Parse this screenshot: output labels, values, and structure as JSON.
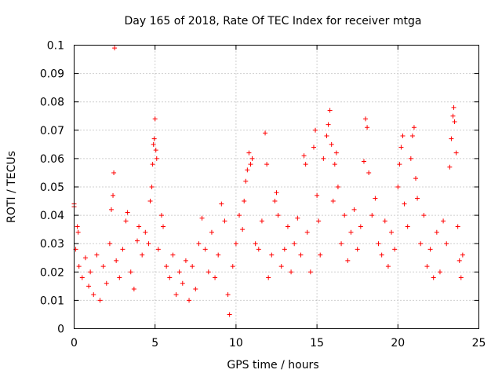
{
  "chart_data": {
    "type": "scatter",
    "title": "Day 165 of 2018, Rate Of TEC Index for receiver mtga",
    "xlabel": "GPS time / hours",
    "ylabel": "ROTI / TECUs",
    "xlim": [
      0,
      25
    ],
    "ylim": [
      0,
      0.1
    ],
    "xticks": [
      0,
      5,
      10,
      15,
      20,
      25
    ],
    "yticks": [
      0,
      0.01,
      0.02,
      0.03,
      0.04,
      0.05,
      0.06,
      0.07,
      0.08,
      0.09,
      0.1
    ],
    "xtick_labels": [
      "0",
      "5",
      "10",
      "15",
      "20",
      "25"
    ],
    "ytick_labels": [
      "0",
      "0.01",
      "0.02",
      "0.03",
      "0.04",
      "0.05",
      "0.06",
      "0.07",
      "0.08",
      "0.09",
      "0.1"
    ],
    "grid": true,
    "marker": "+",
    "color": "#ff0000",
    "series": [
      {
        "name": "ROTI",
        "points": [
          [
            0.0,
            0.044
          ],
          [
            0.0,
            0.043
          ],
          [
            0.1,
            0.028
          ],
          [
            0.2,
            0.036
          ],
          [
            0.25,
            0.034
          ],
          [
            0.3,
            0.022
          ],
          [
            0.5,
            0.018
          ],
          [
            0.7,
            0.025
          ],
          [
            0.9,
            0.015
          ],
          [
            1.0,
            0.02
          ],
          [
            1.2,
            0.012
          ],
          [
            1.4,
            0.026
          ],
          [
            1.6,
            0.01
          ],
          [
            1.8,
            0.022
          ],
          [
            2.0,
            0.016
          ],
          [
            2.2,
            0.03
          ],
          [
            2.3,
            0.042
          ],
          [
            2.4,
            0.047
          ],
          [
            2.45,
            0.055
          ],
          [
            2.5,
            0.099
          ],
          [
            2.6,
            0.024
          ],
          [
            2.8,
            0.018
          ],
          [
            3.0,
            0.028
          ],
          [
            3.2,
            0.038
          ],
          [
            3.3,
            0.041
          ],
          [
            3.5,
            0.02
          ],
          [
            3.7,
            0.014
          ],
          [
            3.9,
            0.031
          ],
          [
            4.0,
            0.036
          ],
          [
            4.2,
            0.026
          ],
          [
            4.4,
            0.034
          ],
          [
            4.6,
            0.03
          ],
          [
            4.7,
            0.045
          ],
          [
            4.8,
            0.05
          ],
          [
            4.85,
            0.058
          ],
          [
            4.9,
            0.065
          ],
          [
            4.95,
            0.067
          ],
          [
            5.0,
            0.074
          ],
          [
            5.05,
            0.063
          ],
          [
            5.1,
            0.06
          ],
          [
            5.2,
            0.028
          ],
          [
            5.4,
            0.04
          ],
          [
            5.5,
            0.036
          ],
          [
            5.7,
            0.022
          ],
          [
            5.9,
            0.018
          ],
          [
            6.1,
            0.026
          ],
          [
            6.3,
            0.012
          ],
          [
            6.5,
            0.02
          ],
          [
            6.7,
            0.016
          ],
          [
            6.9,
            0.024
          ],
          [
            7.1,
            0.01
          ],
          [
            7.3,
            0.022
          ],
          [
            7.5,
            0.014
          ],
          [
            7.7,
            0.03
          ],
          [
            7.9,
            0.039
          ],
          [
            8.1,
            0.028
          ],
          [
            8.3,
            0.02
          ],
          [
            8.5,
            0.034
          ],
          [
            8.7,
            0.018
          ],
          [
            8.9,
            0.026
          ],
          [
            9.1,
            0.044
          ],
          [
            9.3,
            0.038
          ],
          [
            9.5,
            0.012
          ],
          [
            9.6,
            0.005
          ],
          [
            9.8,
            0.022
          ],
          [
            10.0,
            0.03
          ],
          [
            10.2,
            0.04
          ],
          [
            10.4,
            0.035
          ],
          [
            10.5,
            0.045
          ],
          [
            10.6,
            0.052
          ],
          [
            10.7,
            0.056
          ],
          [
            10.8,
            0.062
          ],
          [
            10.9,
            0.058
          ],
          [
            11.0,
            0.06
          ],
          [
            11.2,
            0.03
          ],
          [
            11.4,
            0.028
          ],
          [
            11.6,
            0.038
          ],
          [
            11.8,
            0.069
          ],
          [
            11.9,
            0.058
          ],
          [
            12.0,
            0.018
          ],
          [
            12.2,
            0.026
          ],
          [
            12.4,
            0.045
          ],
          [
            12.5,
            0.048
          ],
          [
            12.6,
            0.04
          ],
          [
            12.8,
            0.022
          ],
          [
            13.0,
            0.028
          ],
          [
            13.2,
            0.036
          ],
          [
            13.4,
            0.02
          ],
          [
            13.6,
            0.03
          ],
          [
            13.8,
            0.039
          ],
          [
            14.0,
            0.026
          ],
          [
            14.2,
            0.061
          ],
          [
            14.3,
            0.058
          ],
          [
            14.4,
            0.034
          ],
          [
            14.6,
            0.02
          ],
          [
            14.8,
            0.064
          ],
          [
            14.9,
            0.07
          ],
          [
            15.0,
            0.047
          ],
          [
            15.1,
            0.038
          ],
          [
            15.2,
            0.026
          ],
          [
            15.4,
            0.06
          ],
          [
            15.6,
            0.068
          ],
          [
            15.7,
            0.072
          ],
          [
            15.8,
            0.077
          ],
          [
            15.9,
            0.065
          ],
          [
            16.0,
            0.045
          ],
          [
            16.1,
            0.058
          ],
          [
            16.2,
            0.062
          ],
          [
            16.3,
            0.05
          ],
          [
            16.5,
            0.03
          ],
          [
            16.7,
            0.04
          ],
          [
            16.9,
            0.024
          ],
          [
            17.1,
            0.034
          ],
          [
            17.3,
            0.042
          ],
          [
            17.5,
            0.028
          ],
          [
            17.7,
            0.036
          ],
          [
            17.9,
            0.059
          ],
          [
            18.0,
            0.074
          ],
          [
            18.1,
            0.071
          ],
          [
            18.2,
            0.055
          ],
          [
            18.4,
            0.04
          ],
          [
            18.6,
            0.046
          ],
          [
            18.8,
            0.03
          ],
          [
            19.0,
            0.026
          ],
          [
            19.2,
            0.038
          ],
          [
            19.4,
            0.022
          ],
          [
            19.6,
            0.034
          ],
          [
            19.8,
            0.028
          ],
          [
            20.0,
            0.05
          ],
          [
            20.1,
            0.058
          ],
          [
            20.2,
            0.064
          ],
          [
            20.3,
            0.068
          ],
          [
            20.4,
            0.044
          ],
          [
            20.6,
            0.036
          ],
          [
            20.8,
            0.06
          ],
          [
            20.9,
            0.068
          ],
          [
            21.0,
            0.071
          ],
          [
            21.1,
            0.053
          ],
          [
            21.2,
            0.046
          ],
          [
            21.4,
            0.03
          ],
          [
            21.6,
            0.04
          ],
          [
            21.8,
            0.022
          ],
          [
            22.0,
            0.028
          ],
          [
            22.2,
            0.018
          ],
          [
            22.4,
            0.034
          ],
          [
            22.6,
            0.02
          ],
          [
            22.8,
            0.038
          ],
          [
            23.0,
            0.03
          ],
          [
            23.2,
            0.057
          ],
          [
            23.3,
            0.067
          ],
          [
            23.4,
            0.075
          ],
          [
            23.45,
            0.078
          ],
          [
            23.5,
            0.073
          ],
          [
            23.6,
            0.062
          ],
          [
            23.7,
            0.036
          ],
          [
            23.8,
            0.024
          ],
          [
            23.9,
            0.018
          ],
          [
            24.0,
            0.026
          ]
        ]
      }
    ]
  }
}
